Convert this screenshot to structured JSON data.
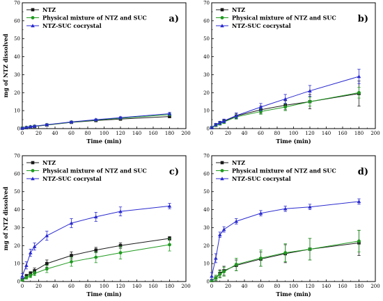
{
  "colors": {
    "ntz": "#1a1a1a",
    "mixture": "#1f9a1f",
    "cocrystal": "#2a2ad0"
  },
  "chart_data": [
    {
      "type": "line",
      "panel_label": "a)",
      "xlabel": "Time (min)",
      "ylabel": "mg of NTZ dissolved",
      "xlim": [
        0,
        200
      ],
      "ylim": [
        0,
        70
      ],
      "xticks": [
        0,
        20,
        40,
        60,
        80,
        100,
        120,
        140,
        160,
        180,
        200
      ],
      "yticks": [
        0,
        10,
        20,
        30,
        40,
        50,
        60,
        70
      ],
      "legend_position": "top-left",
      "x": [
        0,
        5,
        10,
        15,
        30,
        60,
        90,
        120,
        180
      ],
      "series": [
        {
          "name": "NTZ",
          "marker": "square",
          "color": "#1a1a1a",
          "values": [
            0.2,
            0.5,
            0.8,
            1.2,
            2.0,
            3.5,
            4.5,
            5.3,
            6.7
          ],
          "errors": [
            0.1,
            0.1,
            0.2,
            0.2,
            0.3,
            0.3,
            0.4,
            0.4,
            0.6
          ]
        },
        {
          "name": "Physical mixture of NTZ and SUC",
          "marker": "circle",
          "color": "#1f9a1f",
          "values": [
            0.2,
            0.6,
            1.0,
            1.3,
            2.1,
            3.6,
            4.8,
            5.8,
            7.8
          ],
          "errors": [
            0.1,
            0.1,
            0.2,
            0.2,
            0.3,
            0.3,
            0.4,
            0.5,
            0.7
          ]
        },
        {
          "name": "NTZ-SUC cocrystal",
          "marker": "triangle",
          "color": "#2a2ad0",
          "values": [
            0.3,
            0.7,
            1.1,
            1.4,
            2.2,
            3.7,
            5.0,
            6.1,
            8.3
          ],
          "errors": [
            0.1,
            0.1,
            0.2,
            0.2,
            0.3,
            0.3,
            0.4,
            0.5,
            0.7
          ]
        }
      ]
    },
    {
      "type": "line",
      "panel_label": "b)",
      "xlabel": "Time (min)",
      "ylabel": "",
      "xlim": [
        0,
        200
      ],
      "ylim": [
        0,
        70
      ],
      "xticks": [
        0,
        20,
        40,
        60,
        80,
        100,
        120,
        140,
        160,
        180,
        200
      ],
      "yticks": [
        0,
        10,
        20,
        30,
        40,
        50,
        60,
        70
      ],
      "legend_position": "top-left",
      "x": [
        0,
        5,
        10,
        15,
        30,
        60,
        90,
        120,
        180
      ],
      "series": [
        {
          "name": "NTZ",
          "marker": "square",
          "color": "#1a1a1a",
          "values": [
            0.5,
            2.0,
            3.0,
            4.0,
            7.0,
            10.5,
            13.0,
            15.0,
            19.5
          ],
          "errors": [
            0.3,
            0.8,
            1.0,
            1.0,
            1.5,
            2.0,
            2.5,
            4.0,
            7.0
          ]
        },
        {
          "name": "Physical mixture of NTZ and SUC",
          "marker": "circle",
          "color": "#1f9a1f",
          "values": [
            0.5,
            1.8,
            2.8,
            3.7,
            6.5,
            9.5,
            12.0,
            15.0,
            20.0
          ],
          "errors": [
            0.3,
            0.6,
            0.8,
            0.9,
            1.2,
            1.5,
            2.0,
            2.5,
            3.0
          ]
        },
        {
          "name": "NTZ-SUC cocrystal",
          "marker": "triangle",
          "color": "#2a2ad0",
          "values": [
            0.6,
            2.2,
            3.3,
            4.3,
            7.2,
            12.0,
            16.5,
            21.0,
            29.0
          ],
          "errors": [
            0.3,
            0.7,
            0.8,
            1.0,
            1.5,
            2.0,
            2.5,
            3.0,
            4.0
          ]
        }
      ]
    },
    {
      "type": "line",
      "panel_label": "c)",
      "xlabel": "Time (min)",
      "ylabel": "mg of NTZ dissolved",
      "xlim": [
        0,
        200
      ],
      "ylim": [
        0,
        70
      ],
      "xticks": [
        0,
        20,
        40,
        60,
        80,
        100,
        120,
        140,
        160,
        180,
        200
      ],
      "yticks": [
        0,
        10,
        20,
        30,
        40,
        50,
        60,
        70
      ],
      "legend_position": "top-left",
      "x": [
        0,
        5,
        10,
        15,
        30,
        60,
        90,
        120,
        180
      ],
      "series": [
        {
          "name": "NTZ",
          "marker": "square",
          "color": "#1a1a1a",
          "values": [
            1.0,
            3.0,
            4.5,
            6.0,
            10.0,
            14.5,
            17.5,
            20.0,
            24.0
          ],
          "errors": [
            0.5,
            1.0,
            1.0,
            1.5,
            2.0,
            2.0,
            1.5,
            1.5,
            1.0
          ]
        },
        {
          "name": "Physical mixture of NTZ and SUC",
          "marker": "circle",
          "color": "#1f9a1f",
          "values": [
            0.8,
            2.2,
            3.2,
            4.5,
            7.0,
            11.0,
            13.5,
            16.0,
            20.5
          ],
          "errors": [
            0.4,
            0.8,
            1.0,
            1.2,
            2.0,
            2.5,
            3.0,
            3.5,
            3.5
          ]
        },
        {
          "name": "NTZ-SUC cocrystal",
          "marker": "triangle",
          "color": "#2a2ad0",
          "values": [
            3.0,
            9.0,
            16.0,
            19.5,
            25.5,
            32.5,
            36.0,
            39.0,
            42.0
          ],
          "errors": [
            1.5,
            2.0,
            2.0,
            2.0,
            2.5,
            2.5,
            2.5,
            2.5,
            1.5
          ]
        }
      ]
    },
    {
      "type": "line",
      "panel_label": "d)",
      "xlabel": "Time (min)",
      "ylabel": "",
      "xlim": [
        0,
        200
      ],
      "ylim": [
        0,
        70
      ],
      "xticks": [
        0,
        20,
        40,
        60,
        80,
        100,
        120,
        140,
        160,
        180,
        200
      ],
      "yticks": [
        0,
        10,
        20,
        30,
        40,
        50,
        60,
        70
      ],
      "legend_position": "top-left",
      "x": [
        0,
        5,
        10,
        15,
        30,
        60,
        90,
        120,
        180
      ],
      "series": [
        {
          "name": "NTZ",
          "marker": "square",
          "color": "#1a1a1a",
          "values": [
            0.5,
            2.0,
            4.5,
            6.0,
            9.0,
            12.5,
            15.5,
            18.0,
            21.5
          ],
          "errors": [
            0.5,
            1.5,
            2.0,
            2.5,
            3.0,
            4.0,
            5.0,
            6.0,
            7.0
          ]
        },
        {
          "name": "Physical mixture of NTZ and SUC",
          "marker": "circle",
          "color": "#1f9a1f",
          "values": [
            0.5,
            2.0,
            4.0,
            5.5,
            9.5,
            13.0,
            16.0,
            18.0,
            22.5
          ],
          "errors": [
            0.5,
            1.5,
            2.0,
            2.5,
            3.5,
            4.5,
            5.0,
            6.0,
            6.0
          ]
        },
        {
          "name": "NTZ-SUC cocrystal",
          "marker": "triangle",
          "color": "#2a2ad0",
          "values": [
            3.0,
            13.0,
            26.0,
            29.0,
            33.5,
            38.0,
            40.5,
            41.5,
            44.5
          ],
          "errors": [
            2.0,
            2.5,
            1.5,
            1.5,
            1.5,
            1.5,
            1.5,
            1.5,
            1.5
          ]
        }
      ]
    }
  ]
}
